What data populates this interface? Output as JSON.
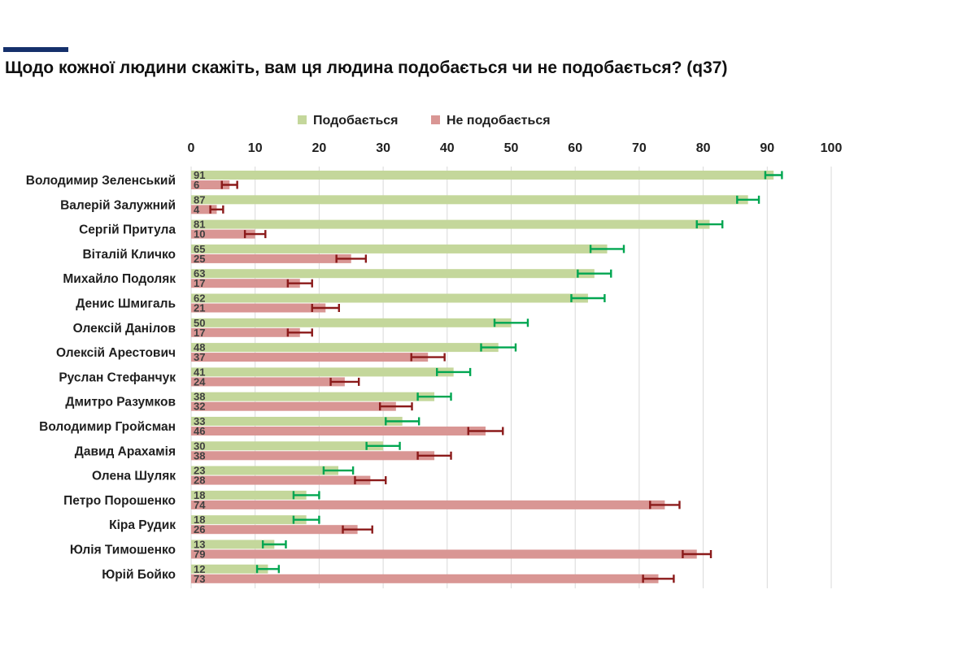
{
  "title": "Щодо кожної людини скажіть, вам ця людина подобається чи не подобається? (q37)",
  "chart_data": {
    "type": "bar",
    "orientation": "horizontal",
    "title": "Щодо кожної людини скажіть, вам ця людина подобається чи не подобається? (q37)",
    "xlim": [
      0,
      100
    ],
    "xticks": [
      "0",
      "10",
      "20",
      "30",
      "40",
      "50",
      "60",
      "70",
      "80",
      "90",
      "100"
    ],
    "grid": true,
    "legend_position": "top",
    "categories": [
      "Володимир Зеленський",
      "Валерій Залужний",
      "Сергій Притула",
      "Віталій Кличко",
      "Михайло Подоляк",
      "Денис Шмигаль",
      "Олексій Данілов",
      "Олексій Арестович",
      "Руслан Стефанчук",
      "Дмитро Разумков",
      "Володимир Гройсман",
      "Давид Арахамія",
      "Олена Шуляк",
      "Петро Порошенко",
      "Кіра Рудик",
      "Юлія Тимошенко",
      "Юрій Бойко"
    ],
    "series": [
      {
        "name": "Подобається",
        "color": "#c4d79b",
        "error_color": "#00a651",
        "values": [
          91,
          87,
          81,
          65,
          63,
          62,
          50,
          48,
          41,
          38,
          33,
          30,
          23,
          18,
          18,
          13,
          12
        ],
        "error_bar": [
          1.3,
          1.7,
          2.0,
          2.6,
          2.6,
          2.6,
          2.6,
          2.7,
          2.6,
          2.6,
          2.6,
          2.6,
          2.3,
          2.0,
          2.0,
          1.8,
          1.7
        ]
      },
      {
        "name": "Не подобається",
        "color": "#d99694",
        "error_color": "#8b1a1a",
        "values": [
          6,
          4,
          10,
          25,
          17,
          21,
          17,
          37,
          24,
          32,
          46,
          38,
          28,
          74,
          26,
          79,
          73
        ],
        "error_bar": [
          1.2,
          1.0,
          1.6,
          2.3,
          1.9,
          2.1,
          1.9,
          2.6,
          2.2,
          2.5,
          2.7,
          2.6,
          2.4,
          2.3,
          2.3,
          2.2,
          2.4
        ]
      }
    ]
  }
}
